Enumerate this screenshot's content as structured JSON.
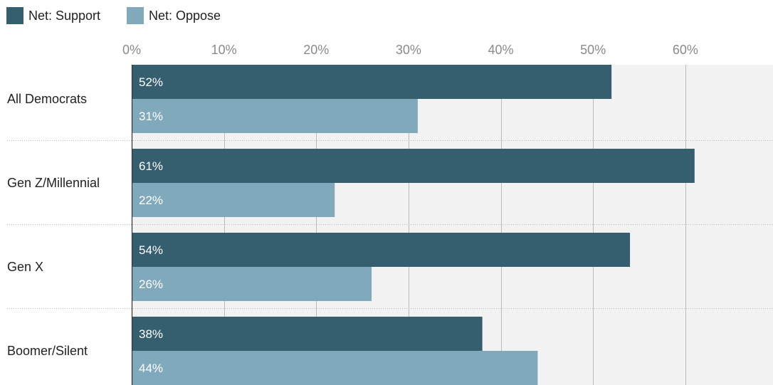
{
  "chart_data": {
    "type": "bar",
    "orientation": "horizontal",
    "categories": [
      "All Democrats",
      "Gen Z/Millennial",
      "Gen X",
      "Boomer/Silent"
    ],
    "series": [
      {
        "name": "Net: Support",
        "values": [
          52,
          61,
          54,
          38
        ],
        "labels": [
          "52%",
          "61%",
          "54%",
          "38%"
        ],
        "color": "#355f6f"
      },
      {
        "name": "Net: Oppose",
        "values": [
          31,
          22,
          26,
          44
        ],
        "labels": [
          "31%",
          "22%",
          "26%",
          "44%"
        ],
        "color": "#80a9bb"
      }
    ],
    "xticks": [
      0,
      10,
      20,
      30,
      40,
      50,
      60
    ],
    "xtick_labels": [
      "0%",
      "10%",
      "20%",
      "30%",
      "40%",
      "50%",
      "60%"
    ],
    "xlim": [
      0,
      69.5
    ],
    "legend_position": "top-left",
    "grid": true,
    "background_color": "#f2f2f2",
    "gridline_color": "#bbbbbb"
  }
}
